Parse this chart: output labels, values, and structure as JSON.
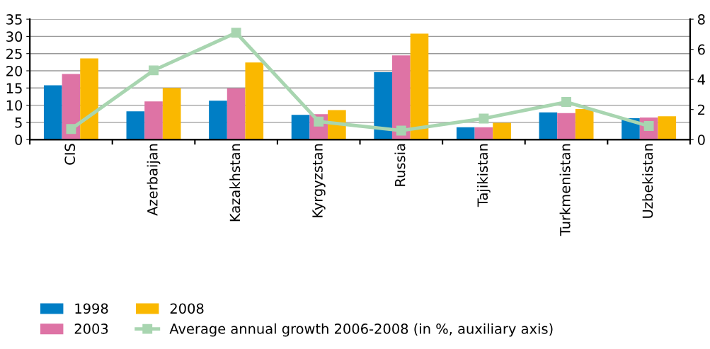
{
  "chart_data": {
    "type": "bar",
    "categories": [
      "CIS",
      "Azerbaijan",
      "Kazakhstan",
      "Kyrgyzstan",
      "Russia",
      "Tajikistan",
      "Turkmenistan",
      "Uzbekistan"
    ],
    "series": [
      {
        "name": "1998",
        "color": "#007ec5",
        "values": [
          15.8,
          8.2,
          11.3,
          7.2,
          19.6,
          3.6,
          7.9,
          6.2
        ]
      },
      {
        "name": "2003",
        "color": "#de73a5",
        "values": [
          19.1,
          11.1,
          14.9,
          7.4,
          24.5,
          3.6,
          7.7,
          6.4
        ]
      },
      {
        "name": "2008",
        "color": "#fab800",
        "values": [
          23.6,
          15.0,
          22.4,
          8.6,
          30.8,
          4.9,
          8.9,
          6.8
        ]
      },
      {
        "name": "Average annual growth 2006-2008 (in %, auxiliary axis)",
        "type": "line",
        "axis": "y2",
        "color": "#a8d5b0",
        "marker": "square",
        "values": [
          0.7,
          4.6,
          7.1,
          1.2,
          0.6,
          1.4,
          2.5,
          0.9
        ]
      }
    ],
    "ylim": [
      0,
      35
    ],
    "yticks": [
      0,
      5,
      10,
      15,
      20,
      25,
      30,
      35
    ],
    "y2lim": [
      0,
      8
    ],
    "y2ticks": [
      0,
      2,
      4,
      6,
      8
    ],
    "grid": "y",
    "legend": "bottom"
  }
}
